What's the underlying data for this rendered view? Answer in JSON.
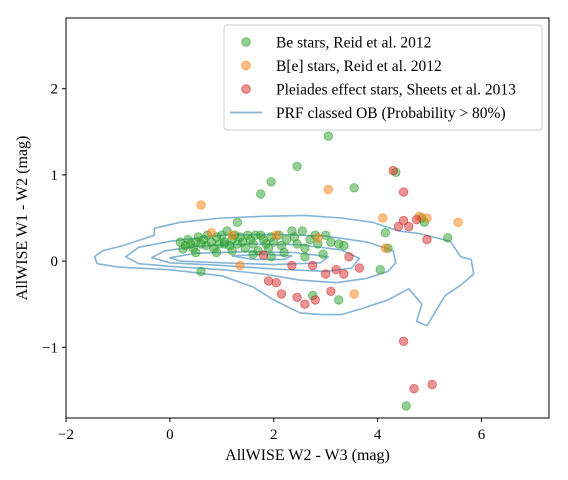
{
  "chart_data": {
    "type": "scatter",
    "xlabel": "AllWISE W2 - W3 (mag)",
    "ylabel": "AllWISE W1 - W2 (mag)",
    "xlim": [
      -2,
      7.3
    ],
    "ylim": [
      -1.82,
      2.82
    ],
    "xticks": [
      {
        "value": -2,
        "label": "−2"
      },
      {
        "value": 0,
        "label": "0"
      },
      {
        "value": 2,
        "label": "2"
      },
      {
        "value": 4,
        "label": "4"
      },
      {
        "value": 6,
        "label": "6"
      }
    ],
    "yticks": [
      {
        "value": -1,
        "label": "−1"
      },
      {
        "value": 0,
        "label": "0"
      },
      {
        "value": 1,
        "label": "1"
      },
      {
        "value": 2,
        "label": "2"
      }
    ],
    "grid": false,
    "legend_position": "top-right",
    "legend": [
      {
        "label": "Be stars, Reid et al. 2012",
        "kind": "marker",
        "color": "#2ca02c"
      },
      {
        "label": "B[e] stars, Reid et al. 2012",
        "kind": "marker",
        "color": "#ff7f0e"
      },
      {
        "label": "Pleiades effect stars, Sheets et al. 2013",
        "kind": "marker",
        "color": "#d62728"
      },
      {
        "label": "PRF classed OB (Probability > 80%)",
        "kind": "line",
        "color": "#1f77b4"
      }
    ],
    "series": [
      {
        "name": "Be stars, Reid et al. 2012",
        "color": "#2ca02c",
        "points": [
          [
            0.2,
            0.22
          ],
          [
            0.3,
            0.18
          ],
          [
            0.35,
            0.25
          ],
          [
            0.4,
            0.2
          ],
          [
            0.45,
            0.15
          ],
          [
            0.5,
            0.22
          ],
          [
            0.55,
            0.28
          ],
          [
            0.6,
            0.2
          ],
          [
            0.65,
            0.25
          ],
          [
            0.7,
            0.18
          ],
          [
            0.72,
            0.3
          ],
          [
            0.8,
            0.22
          ],
          [
            0.85,
            0.15
          ],
          [
            0.9,
            0.28
          ],
          [
            0.95,
            0.2
          ],
          [
            1.0,
            0.3
          ],
          [
            1.05,
            0.22
          ],
          [
            1.1,
            0.35
          ],
          [
            1.15,
            0.18
          ],
          [
            1.2,
            0.25
          ],
          [
            1.25,
            0.3
          ],
          [
            1.3,
            0.45
          ],
          [
            1.3,
            0.2
          ],
          [
            1.35,
            0.28
          ],
          [
            1.4,
            0.22
          ],
          [
            1.45,
            0.15
          ],
          [
            1.5,
            0.3
          ],
          [
            1.55,
            0.25
          ],
          [
            1.6,
            0.2
          ],
          [
            1.65,
            0.3
          ],
          [
            1.7,
            0.12
          ],
          [
            1.75,
            0.3
          ],
          [
            1.8,
            0.25
          ],
          [
            1.85,
            0.2
          ],
          [
            1.9,
            0.15
          ],
          [
            1.95,
            0.28
          ],
          [
            2.0,
            0.22
          ],
          [
            2.1,
            0.3
          ],
          [
            2.15,
            0.18
          ],
          [
            2.25,
            0.25
          ],
          [
            2.35,
            0.35
          ],
          [
            2.4,
            0.28
          ],
          [
            2.45,
            0.2
          ],
          [
            2.55,
            0.35
          ],
          [
            2.6,
            0.15
          ],
          [
            2.7,
            0.25
          ],
          [
            2.8,
            0.3
          ],
          [
            2.85,
            0.2
          ],
          [
            2.95,
            0.08
          ],
          [
            3.0,
            0.3
          ],
          [
            3.1,
            0.22
          ],
          [
            3.25,
            0.2
          ],
          [
            3.35,
            0.18
          ],
          [
            3.05,
            1.45
          ],
          [
            2.45,
            1.1
          ],
          [
            1.95,
            0.92
          ],
          [
            1.75,
            0.78
          ],
          [
            3.55,
            0.85
          ],
          [
            4.35,
            1.03
          ],
          [
            0.6,
            -0.12
          ],
          [
            4.15,
            0.33
          ],
          [
            4.2,
            0.15
          ],
          [
            4.05,
            -0.1
          ],
          [
            2.75,
            -0.4
          ],
          [
            3.25,
            -0.45
          ],
          [
            4.55,
            -1.68
          ],
          [
            4.85,
            0.5
          ],
          [
            4.9,
            0.45
          ],
          [
            5.35,
            0.27
          ],
          [
            0.9,
            0.1
          ],
          [
            1.05,
            0.2
          ],
          [
            1.2,
            0.12
          ],
          [
            1.6,
            0.08
          ],
          [
            1.95,
            0.05
          ],
          [
            2.2,
            0.1
          ],
          [
            2.6,
            0.05
          ],
          [
            0.25,
            0.14
          ],
          [
            0.5,
            0.1
          ]
        ]
      },
      {
        "name": "B[e] stars, Reid et al. 2012",
        "color": "#ff7f0e",
        "points": [
          [
            0.6,
            0.65
          ],
          [
            0.8,
            0.33
          ],
          [
            1.35,
            -0.05
          ],
          [
            2.05,
            0.3
          ],
          [
            2.85,
            0.27
          ],
          [
            3.05,
            0.83
          ],
          [
            3.55,
            -0.38
          ],
          [
            4.1,
            0.5
          ],
          [
            4.15,
            0.15
          ],
          [
            4.8,
            0.52
          ],
          [
            4.95,
            0.5
          ],
          [
            5.55,
            0.45
          ],
          [
            1.2,
            0.3
          ]
        ]
      },
      {
        "name": "Pleiades effect stars, Sheets et al. 2013",
        "color": "#d62728",
        "points": [
          [
            1.8,
            0.07
          ],
          [
            1.9,
            -0.23
          ],
          [
            2.05,
            -0.25
          ],
          [
            2.15,
            -0.38
          ],
          [
            2.45,
            -0.42
          ],
          [
            2.6,
            -0.5
          ],
          [
            2.8,
            -0.45
          ],
          [
            2.75,
            -0.05
          ],
          [
            3.0,
            -0.15
          ],
          [
            3.1,
            -0.35
          ],
          [
            3.35,
            -0.15
          ],
          [
            3.45,
            0.05
          ],
          [
            3.65,
            -0.08
          ],
          [
            4.3,
            1.05
          ],
          [
            4.5,
            0.8
          ],
          [
            4.5,
            0.47
          ],
          [
            4.6,
            0.4
          ],
          [
            4.75,
            0.48
          ],
          [
            4.5,
            -0.93
          ],
          [
            4.7,
            -1.48
          ],
          [
            5.05,
            -1.43
          ],
          [
            4.4,
            0.4
          ],
          [
            4.95,
            0.25
          ],
          [
            3.2,
            -0.1
          ],
          [
            2.35,
            -0.05
          ]
        ]
      }
    ],
    "contours": [
      {
        "name": "PRF classed OB (Probability > 80%)",
        "color": "#1f77b4",
        "levels": [
          [
            [
              -1.45,
              0.05
            ],
            [
              -1.3,
              0.12
            ],
            [
              -0.9,
              0.18
            ],
            [
              -0.5,
              0.26
            ],
            [
              -0.3,
              0.3
            ],
            [
              -0.3,
              0.38
            ],
            [
              0.2,
              0.45
            ],
            [
              1.0,
              0.5
            ],
            [
              1.8,
              0.52
            ],
            [
              2.6,
              0.53
            ],
            [
              3.3,
              0.5
            ],
            [
              3.9,
              0.45
            ],
            [
              4.4,
              0.35
            ],
            [
              4.8,
              0.32
            ],
            [
              5.4,
              0.23
            ],
            [
              5.6,
              0.05
            ],
            [
              5.8,
              0.02
            ],
            [
              5.85,
              -0.15
            ],
            [
              5.6,
              -0.28
            ],
            [
              5.3,
              -0.4
            ],
            [
              5.1,
              -0.6
            ],
            [
              4.95,
              -0.75
            ],
            [
              4.75,
              -0.7
            ],
            [
              4.85,
              -0.5
            ],
            [
              4.6,
              -0.32
            ],
            [
              4.2,
              -0.45
            ],
            [
              3.7,
              -0.55
            ],
            [
              3.3,
              -0.62
            ],
            [
              2.9,
              -0.62
            ],
            [
              2.5,
              -0.6
            ],
            [
              2.0,
              -0.45
            ],
            [
              1.6,
              -0.3
            ],
            [
              1.0,
              -0.17
            ],
            [
              0.0,
              -0.1
            ],
            [
              -1.0,
              -0.07
            ],
            [
              -1.4,
              -0.03
            ],
            [
              -1.45,
              0.05
            ]
          ],
          [
            [
              -0.85,
              0.05
            ],
            [
              -0.6,
              0.16
            ],
            [
              0.0,
              0.23
            ],
            [
              1.0,
              0.3
            ],
            [
              2.0,
              0.31
            ],
            [
              3.0,
              0.29
            ],
            [
              3.8,
              0.22
            ],
            [
              4.3,
              0.12
            ],
            [
              4.35,
              -0.02
            ],
            [
              4.2,
              -0.12
            ],
            [
              3.8,
              -0.2
            ],
            [
              3.2,
              -0.25
            ],
            [
              2.5,
              -0.22
            ],
            [
              1.8,
              -0.15
            ],
            [
              1.0,
              -0.1
            ],
            [
              0.0,
              -0.06
            ],
            [
              -0.6,
              -0.03
            ],
            [
              -0.85,
              0.05
            ]
          ],
          [
            [
              -0.35,
              0.04
            ],
            [
              -0.1,
              0.12
            ],
            [
              0.5,
              0.17
            ],
            [
              1.5,
              0.2
            ],
            [
              2.5,
              0.19
            ],
            [
              3.3,
              0.13
            ],
            [
              3.65,
              0.03
            ],
            [
              3.5,
              -0.08
            ],
            [
              3.0,
              -0.12
            ],
            [
              2.0,
              -0.09
            ],
            [
              1.0,
              -0.05
            ],
            [
              0.0,
              -0.02
            ],
            [
              -0.35,
              0.04
            ]
          ],
          [
            [
              0.0,
              0.04
            ],
            [
              0.5,
              0.09
            ],
            [
              1.5,
              0.11
            ],
            [
              2.4,
              0.1
            ],
            [
              3.05,
              0.05
            ],
            [
              2.9,
              -0.02
            ],
            [
              2.0,
              -0.04
            ],
            [
              1.0,
              -0.02
            ],
            [
              0.2,
              0.0
            ],
            [
              0.0,
              0.04
            ]
          ],
          [
            [
              1.2,
              0.06
            ],
            [
              1.8,
              0.08
            ],
            [
              2.35,
              0.06
            ],
            [
              2.2,
              0.02
            ],
            [
              1.6,
              0.02
            ],
            [
              1.2,
              0.06
            ]
          ]
        ]
      }
    ]
  }
}
